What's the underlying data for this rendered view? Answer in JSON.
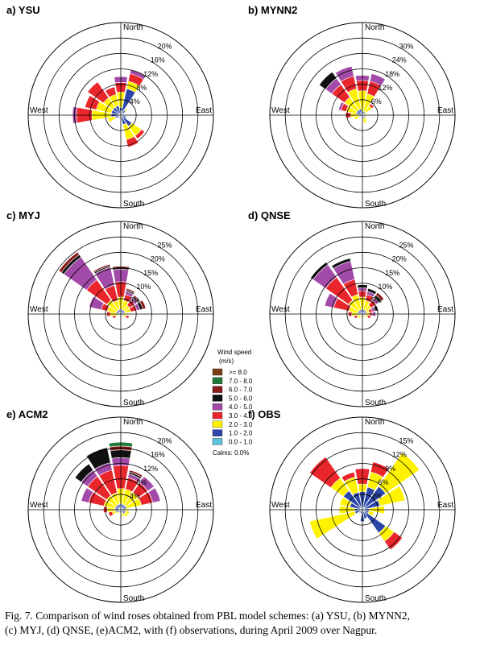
{
  "figure": {
    "caption_line1": "Fig. 7. Comparison of wind roses obtained from PBL model schemes: (a) YSU, (b) MYNN2,",
    "caption_line2": "(c) MYJ, (d) QNSE, (e)ACM2, with (f) observations, during April 2009 over Nagpur."
  },
  "direction_labels": {
    "north": "North",
    "south": "South",
    "east": "East",
    "west": "West"
  },
  "legend": {
    "title_line1": "Wind speed",
    "title_line2": "(m/s)",
    "calms": "Calms: 0.0%",
    "bins": [
      {
        "label": ">= 8.0",
        "color": "#7b3f1a"
      },
      {
        "label": "7.0 - 8.0",
        "color": "#1f7a3a"
      },
      {
        "label": "6.0 - 7.0",
        "color": "#8b1a1a"
      },
      {
        "label": "5.0 - 6.0",
        "color": "#111111"
      },
      {
        "label": "4.0 - 5.0",
        "color": "#a24aa8"
      },
      {
        "label": "3.0 - 4.0",
        "color": "#e8262b"
      },
      {
        "label": "2.0 - 3.0",
        "color": "#fff200"
      },
      {
        "label": "1.0 - 2.0",
        "color": "#2b46a8"
      },
      {
        "label": "0.0 - 1.0",
        "color": "#5bc0d9"
      }
    ]
  },
  "chart_data": [
    {
      "type": "windrose",
      "panel": "a) YSU",
      "rmax": 24,
      "rings": [
        4,
        8,
        12,
        16,
        20
      ],
      "ring_labels": [
        "4%",
        "8%",
        "12%",
        "16%",
        "20%"
      ],
      "directions": [
        "N",
        "NNE",
        "NE",
        "ENE",
        "E",
        "ESE",
        "SE",
        "SSE",
        "S",
        "SSW",
        "SW",
        "WSW",
        "W",
        "WNW",
        "NW",
        "NNW"
      ],
      "series": [
        [
          0.5,
          1.5,
          4,
          2.5,
          1.5,
          0,
          0,
          0,
          0
        ],
        [
          1,
          6,
          2,
          2,
          1,
          0,
          0,
          0,
          0
        ],
        [
          0.5,
          1,
          0.5,
          0,
          0,
          0,
          0,
          0,
          0
        ],
        [
          0.3,
          0.5,
          0,
          0,
          0,
          0,
          0,
          0,
          0
        ],
        [
          0.3,
          0.4,
          0,
          0,
          0,
          0,
          0,
          0,
          0
        ],
        [
          0.5,
          1,
          0,
          0,
          0,
          0,
          0,
          0,
          0
        ],
        [
          0.5,
          3,
          3,
          1,
          0,
          0,
          0,
          0,
          0
        ],
        [
          0.5,
          2,
          4,
          2,
          0,
          0,
          0,
          0,
          0
        ],
        [
          0.3,
          0.5,
          0.5,
          0,
          0,
          0,
          0,
          0,
          0
        ],
        [
          0.3,
          0.5,
          0,
          0,
          0,
          0,
          0,
          0,
          0
        ],
        [
          0.3,
          0.5,
          0,
          0,
          0,
          0,
          0,
          0,
          0
        ],
        [
          0.5,
          1,
          2,
          0,
          0,
          0,
          0,
          0,
          0
        ],
        [
          0.5,
          2,
          5,
          4,
          1,
          0,
          0,
          0,
          0
        ],
        [
          0.5,
          2,
          4,
          3,
          0,
          0,
          0,
          0,
          0
        ],
        [
          0.5,
          2,
          3,
          5,
          0,
          0,
          0,
          0,
          0
        ],
        [
          0.5,
          2,
          3,
          2,
          0,
          0,
          0,
          0,
          0
        ]
      ]
    },
    {
      "type": "windrose",
      "panel": "b) MYNN2",
      "rmax": 36,
      "rings": [
        6,
        12,
        18,
        24,
        30
      ],
      "ring_labels": [
        "6%",
        "12%",
        "18%",
        "24%",
        "30%"
      ],
      "directions": [
        "N",
        "NNE",
        "NE",
        "ENE",
        "E",
        "ESE",
        "SE",
        "SSE",
        "S",
        "SSW",
        "SW",
        "WSW",
        "W",
        "WNW",
        "NW",
        "NNW"
      ],
      "series": [
        [
          0.5,
          1,
          8,
          4,
          2,
          0,
          0,
          0,
          0
        ],
        [
          0.5,
          1,
          7,
          5,
          3,
          0,
          0,
          0,
          0
        ],
        [
          0.5,
          1,
          3,
          1,
          0,
          0,
          0,
          0,
          0
        ],
        [
          0.3,
          0.5,
          1,
          0,
          0,
          0,
          0,
          0,
          0
        ],
        [
          0.3,
          0.5,
          0,
          0,
          0,
          0,
          0,
          0,
          0
        ],
        [
          0.3,
          1,
          0,
          0,
          0,
          0,
          0,
          0,
          0
        ],
        [
          0.3,
          1,
          1,
          0,
          0,
          0,
          0,
          0,
          0
        ],
        [
          0.3,
          1,
          2,
          0,
          0,
          0,
          0,
          0,
          0
        ],
        [
          0.3,
          0.5,
          0,
          0,
          0,
          0,
          0,
          0,
          0
        ],
        [
          0.3,
          0.5,
          0,
          0,
          0,
          0,
          0,
          0,
          0
        ],
        [
          0.3,
          0.5,
          0,
          0,
          0,
          0,
          0,
          0,
          0
        ],
        [
          0.3,
          1,
          2,
          0,
          0,
          0,
          0,
          0,
          0
        ],
        [
          0.5,
          1,
          3,
          2,
          0,
          0,
          0,
          0,
          0
        ],
        [
          0.5,
          2,
          4,
          2,
          1,
          0,
          0,
          0,
          0
        ],
        [
          0.5,
          2,
          6,
          6,
          3,
          3,
          0,
          0,
          0
        ],
        [
          0.5,
          2,
          8,
          5,
          4,
          0,
          0,
          0,
          0
        ]
      ]
    },
    {
      "type": "windrose",
      "panel": "c) MYJ",
      "rmax": 30,
      "rings": [
        5,
        10,
        15,
        20,
        25
      ],
      "ring_labels": [
        "5%",
        "10%",
        "15%",
        "20%",
        "25%"
      ],
      "directions": [
        "N",
        "NNE",
        "NE",
        "ENE",
        "E",
        "ESE",
        "SE",
        "SSE",
        "S",
        "SSW",
        "SW",
        "WSW",
        "W",
        "WNW",
        "NW",
        "NNW"
      ],
      "series": [
        [
          0.5,
          1,
          4,
          5,
          4,
          0.5,
          0.5,
          0,
          0
        ],
        [
          0.5,
          1,
          3,
          2,
          1,
          0.5,
          0.5,
          0,
          0
        ],
        [
          0.5,
          1,
          2,
          2,
          1,
          0.5,
          0.5,
          0,
          0
        ],
        [
          0.3,
          1,
          2,
          2,
          1,
          1,
          1,
          0,
          0
        ],
        [
          0.3,
          0.5,
          1,
          0,
          0,
          0,
          0,
          0,
          0
        ],
        [
          0.3,
          0.5,
          1,
          1,
          0,
          0,
          0,
          0,
          0
        ],
        [
          0.3,
          0.5,
          0.5,
          0,
          0,
          0,
          0,
          0,
          0
        ],
        [
          0.3,
          0.5,
          0,
          0,
          0,
          0,
          0,
          0,
          0
        ],
        [
          0.3,
          0.5,
          0,
          0,
          0,
          0,
          0,
          0,
          0
        ],
        [
          0.3,
          0.5,
          0,
          0,
          0,
          0,
          0,
          0,
          0
        ],
        [
          0.3,
          0.5,
          0,
          0,
          0,
          0,
          0,
          0,
          0
        ],
        [
          0.3,
          0.5,
          1,
          1,
          0,
          0,
          0,
          0,
          0
        ],
        [
          0.5,
          1,
          2,
          1,
          0,
          0,
          0,
          0,
          0
        ],
        [
          0.5,
          1,
          3,
          2,
          4,
          0,
          0,
          0,
          0
        ],
        [
          0.5,
          1,
          4,
          8,
          9,
          1,
          1,
          0,
          0
        ],
        [
          0.5,
          1,
          3,
          5,
          6,
          0.5,
          0.5,
          0,
          0
        ]
      ]
    },
    {
      "type": "windrose",
      "panel": "d) QNSE",
      "rmax": 30,
      "rings": [
        5,
        10,
        15,
        20,
        25
      ],
      "ring_labels": [
        "5%",
        "10%",
        "15%",
        "20%",
        "25%"
      ],
      "directions": [
        "N",
        "NNE",
        "NE",
        "ENE",
        "E",
        "ESE",
        "SE",
        "SSE",
        "S",
        "SSW",
        "SW",
        "WSW",
        "W",
        "WNW",
        "NW",
        "NNW"
      ],
      "series": [
        [
          0.5,
          1,
          4,
          2,
          1,
          1,
          0,
          0,
          0
        ],
        [
          0.5,
          1,
          3,
          2,
          1,
          1,
          0,
          0,
          0
        ],
        [
          0.5,
          1,
          2,
          2,
          1,
          1,
          1,
          0,
          0
        ],
        [
          0.3,
          1,
          1,
          1,
          1,
          1,
          0,
          0,
          0
        ],
        [
          0.3,
          1,
          1,
          1,
          1,
          0,
          0,
          0,
          0
        ],
        [
          0.3,
          0.5,
          1,
          1,
          0,
          0,
          0,
          0,
          0
        ],
        [
          0.3,
          0.5,
          0.5,
          0,
          0,
          0,
          0,
          0,
          0
        ],
        [
          0.3,
          0.5,
          0.5,
          0,
          0,
          0,
          0,
          0,
          0
        ],
        [
          0.3,
          0.5,
          0,
          0,
          0,
          0,
          0,
          0,
          0
        ],
        [
          0.3,
          0.5,
          0.5,
          0,
          0,
          0,
          0,
          0,
          0
        ],
        [
          0.3,
          0.5,
          1,
          0,
          0,
          0,
          0,
          0,
          0
        ],
        [
          0.3,
          0.5,
          1,
          1,
          0,
          0,
          0,
          0,
          0
        ],
        [
          0.5,
          1,
          2,
          1,
          0,
          0,
          0,
          0,
          0
        ],
        [
          0.5,
          1,
          3,
          5,
          3,
          0,
          0,
          0,
          0
        ],
        [
          0.5,
          1,
          4,
          9,
          5,
          1,
          0,
          0,
          0
        ],
        [
          0.5,
          1,
          5,
          5,
          6,
          1,
          0,
          0,
          0
        ]
      ]
    },
    {
      "type": "windrose",
      "panel": "e) ACM2",
      "rmax": 24,
      "rings": [
        4,
        8,
        12,
        16,
        20
      ],
      "ring_labels": [
        "4%",
        "8%",
        "12%",
        "16%",
        "20%"
      ],
      "directions": [
        "N",
        "NNE",
        "NE",
        "ENE",
        "E",
        "ESE",
        "SE",
        "SSE",
        "S",
        "SSW",
        "SW",
        "WSW",
        "W",
        "WNW",
        "NW",
        "NNW"
      ],
      "series": [
        [
          0.5,
          1,
          4,
          6,
          2,
          2,
          1,
          1,
          0
        ],
        [
          0.5,
          1,
          4,
          3,
          1,
          0.5,
          0.5,
          0,
          0
        ],
        [
          0.5,
          1,
          4,
          3,
          2,
          0,
          0,
          0,
          0
        ],
        [
          0.5,
          1,
          4,
          3,
          2,
          0,
          0,
          0,
          0
        ],
        [
          0.3,
          0.5,
          1,
          0,
          0,
          0,
          0,
          0,
          0
        ],
        [
          0.3,
          1,
          1,
          0,
          0,
          0,
          0,
          0,
          0
        ],
        [
          0.3,
          1,
          1,
          0,
          0,
          0,
          0,
          0,
          0
        ],
        [
          0.3,
          0.5,
          1,
          0,
          0,
          0,
          0,
          0,
          0
        ],
        [
          0.3,
          0.5,
          0,
          0,
          0,
          0,
          0,
          0,
          0
        ],
        [
          0.3,
          0.5,
          0,
          0,
          0,
          0,
          0,
          0,
          0
        ],
        [
          0.3,
          0.5,
          0.5,
          0,
          0,
          0,
          0,
          0,
          0
        ],
        [
          0.3,
          1,
          1,
          1,
          0,
          0,
          0,
          0,
          0
        ],
        [
          0.5,
          1,
          2,
          1,
          0,
          0,
          0,
          0,
          0
        ],
        [
          0.5,
          1,
          3,
          4,
          2,
          0,
          0,
          0,
          0
        ],
        [
          0.5,
          1,
          3,
          6,
          2,
          2,
          0,
          0,
          0
        ],
        [
          0.5,
          1,
          3,
          6,
          2,
          4,
          0,
          0,
          0
        ]
      ]
    },
    {
      "type": "windrose",
      "panel": "f) OBS",
      "rmax": 18,
      "rings": [
        3,
        6,
        9,
        12,
        15
      ],
      "ring_labels": [
        "3%",
        "6%",
        "9%",
        "12%",
        "15%"
      ],
      "directions": [
        "N",
        "NNE",
        "NE",
        "ENE",
        "E",
        "ESE",
        "SE",
        "SSE",
        "S",
        "SSW",
        "SW",
        "WSW",
        "W",
        "WNW",
        "NW",
        "NNW"
      ],
      "series": [
        [
          0.5,
          3,
          1.5,
          3,
          0,
          0,
          0,
          0,
          0
        ],
        [
          0.5,
          4,
          3,
          2,
          0,
          0,
          0,
          0,
          0
        ],
        [
          0.5,
          5,
          8,
          0,
          0,
          0,
          0,
          0,
          0
        ],
        [
          0.5,
          3,
          5,
          0,
          0,
          0,
          0,
          0,
          0
        ],
        [
          0.3,
          1,
          3,
          0,
          0,
          0,
          0,
          0,
          0
        ],
        [
          0.3,
          1,
          1,
          0,
          0,
          0,
          0,
          0,
          0
        ],
        [
          0.5,
          5,
          2,
          2,
          0,
          0,
          0,
          0,
          0
        ],
        [
          0.3,
          1.5,
          0,
          0,
          0,
          0,
          0,
          0,
          0
        ],
        [
          0.3,
          2,
          0,
          0,
          0,
          0,
          0,
          0,
          0
        ],
        [
          0.3,
          0.5,
          0,
          0,
          0,
          0,
          0,
          0,
          0
        ],
        [
          0.3,
          0.5,
          0,
          0,
          0,
          0,
          0,
          0,
          0
        ],
        [
          0.5,
          1,
          9,
          0,
          0,
          0,
          0,
          0,
          0
        ],
        [
          0.5,
          1,
          3,
          0,
          0,
          0,
          0,
          0,
          0
        ],
        [
          0.5,
          2,
          2,
          0,
          0,
          0,
          0,
          0,
          0
        ],
        [
          0.5,
          4,
          3,
          5,
          0,
          0,
          0,
          0,
          0
        ],
        [
          0.5,
          3,
          3,
          1,
          0,
          0,
          0,
          0,
          0
        ]
      ]
    }
  ]
}
